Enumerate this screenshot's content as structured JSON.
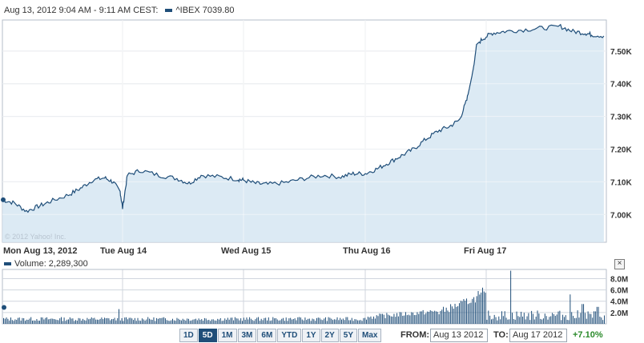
{
  "header": {
    "range_label": "Aug 13, 2012 9:04 AM - 9:11 AM CEST:",
    "series_label": "^IBEX 7039.80"
  },
  "watermark": "© 2012 Yahoo! Inc.",
  "volume_label": "Volume: 2,289,300",
  "close_icon_glyph": "×",
  "range_buttons": [
    {
      "label": "1D",
      "active": false
    },
    {
      "label": "5D",
      "active": true
    },
    {
      "label": "1M",
      "active": false
    },
    {
      "label": "3M",
      "active": false
    },
    {
      "label": "6M",
      "active": false
    },
    {
      "label": "YTD",
      "active": false
    },
    {
      "label": "1Y",
      "active": false
    },
    {
      "label": "2Y",
      "active": false
    },
    {
      "label": "5Y",
      "active": false
    },
    {
      "label": "Max",
      "active": false
    }
  ],
  "from": {
    "label": "FROM:",
    "value": "Aug 13 2012"
  },
  "to": {
    "label": "TO:",
    "value": "Aug 17 2012"
  },
  "change": "+7.10%",
  "colors": {
    "line": "#1f4e79",
    "fill": "#d6e6f2",
    "grid": "#d0d6de",
    "accent_green": "#2a8a2a"
  },
  "chart_data": [
    {
      "type": "area",
      "name": "^IBEX",
      "x_categories": [
        "Mon Aug 13, 2012",
        "Tue Aug 14",
        "Wed Aug 15",
        "Thu Aug 16",
        "Fri Aug 17"
      ],
      "y_ticks": [
        "7.00K",
        "7.10K",
        "7.20K",
        "7.30K",
        "7.40K",
        "7.50K"
      ],
      "y_tick_values": [
        7000,
        7100,
        7200,
        7300,
        7400,
        7500
      ],
      "ylim": [
        6915,
        7595
      ],
      "grid": true,
      "points": [
        [
          0.0,
          7045
        ],
        [
          0.1,
          7035
        ],
        [
          0.2,
          7010
        ],
        [
          0.3,
          7025
        ],
        [
          0.4,
          7040
        ],
        [
          0.55,
          7060
        ],
        [
          0.65,
          7080
        ],
        [
          0.75,
          7105
        ],
        [
          0.85,
          7112
        ],
        [
          0.92,
          7100
        ],
        [
          0.98,
          7070
        ],
        [
          1.0,
          7020
        ],
        [
          1.04,
          7120
        ],
        [
          1.15,
          7135
        ],
        [
          1.3,
          7120
        ],
        [
          1.45,
          7110
        ],
        [
          1.55,
          7095
        ],
        [
          1.65,
          7120
        ],
        [
          1.8,
          7115
        ],
        [
          1.95,
          7108
        ],
        [
          2.0,
          7105
        ],
        [
          2.1,
          7095
        ],
        [
          2.2,
          7092
        ],
        [
          2.35,
          7098
        ],
        [
          2.5,
          7110
        ],
        [
          2.65,
          7120
        ],
        [
          2.8,
          7115
        ],
        [
          2.9,
          7125
        ],
        [
          3.0,
          7125
        ],
        [
          3.1,
          7140
        ],
        [
          3.2,
          7160
        ],
        [
          3.3,
          7180
        ],
        [
          3.4,
          7200
        ],
        [
          3.5,
          7230
        ],
        [
          3.6,
          7255
        ],
        [
          3.7,
          7270
        ],
        [
          3.78,
          7290
        ],
        [
          3.84,
          7350
        ],
        [
          3.88,
          7420
        ],
        [
          3.9,
          7460
        ],
        [
          3.92,
          7520
        ],
        [
          3.98,
          7540
        ],
        [
          4.05,
          7555
        ],
        [
          4.15,
          7560
        ],
        [
          4.3,
          7565
        ],
        [
          4.45,
          7570
        ],
        [
          4.6,
          7575
        ],
        [
          4.7,
          7560
        ],
        [
          4.8,
          7555
        ],
        [
          4.85,
          7550
        ],
        [
          4.95,
          7546
        ]
      ]
    },
    {
      "type": "bar",
      "name": "Volume",
      "y_ticks": [
        "2.0M",
        "4.0M",
        "6.0M",
        "8.0M"
      ],
      "y_tick_values": [
        2000000,
        4000000,
        6000000,
        8000000
      ],
      "ylim": [
        0,
        9200000
      ],
      "spikes": [
        {
          "x": 0.97,
          "value": 2600000
        },
        {
          "x": 3.93,
          "value": 5800000
        },
        {
          "x": 3.97,
          "value": 6400000
        },
        {
          "x": 4.2,
          "value": 9400000
        },
        {
          "x": 4.68,
          "value": 5200000
        },
        {
          "x": 4.78,
          "value": 3500000
        },
        {
          "x": 4.9,
          "value": 3000000
        }
      ]
    }
  ]
}
